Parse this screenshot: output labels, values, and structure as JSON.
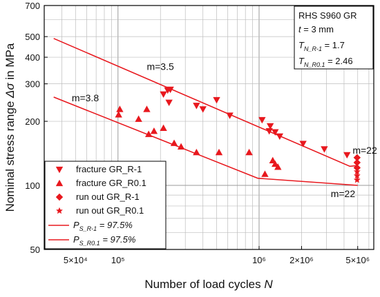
{
  "chart_data": {
    "type": "scatter",
    "xscale": "log",
    "yscale": "log",
    "xlim": [
      30000,
      6500000
    ],
    "ylim": [
      50,
      700
    ],
    "grid": true,
    "xlabel_text": "Number of load cycles ",
    "xlabel_var": "N",
    "ylabel_text": "Nominal stress range ",
    "ylabel_var": "Δσ",
    "ylabel_suffix": " in MPa",
    "x_ticks": [
      {
        "value": 50000,
        "label": "5×10⁴"
      },
      {
        "value": 100000,
        "label": "10⁵"
      },
      {
        "value": 1000000,
        "label": "10⁶"
      },
      {
        "value": 2000000,
        "label": "2×10⁶"
      },
      {
        "value": 5000000,
        "label": "5×10⁶"
      }
    ],
    "y_ticks": [
      {
        "value": 50,
        "label": "50"
      },
      {
        "value": 100,
        "label": "100"
      },
      {
        "value": 200,
        "label": "200"
      },
      {
        "value": 300,
        "label": "300"
      },
      {
        "value": 400,
        "label": "400"
      },
      {
        "value": 500,
        "label": "500"
      },
      {
        "value": 700,
        "label": "700"
      }
    ],
    "color": "#e8181e",
    "series": [
      {
        "name": "fracture GR_R-1",
        "marker": "triangle-down",
        "points": [
          [
            210000,
            268
          ],
          [
            225000,
            280
          ],
          [
            235000,
            282
          ],
          [
            230000,
            245
          ],
          [
            360000,
            237
          ],
          [
            400000,
            228
          ],
          [
            500000,
            252
          ],
          [
            620000,
            213
          ],
          [
            1050000,
            203
          ],
          [
            1180000,
            180
          ],
          [
            1200000,
            190
          ],
          [
            1300000,
            178
          ],
          [
            1400000,
            170
          ],
          [
            2050000,
            157
          ],
          [
            2900000,
            148
          ],
          [
            4200000,
            139
          ]
        ]
      },
      {
        "name": "fracture GR_R0.1",
        "marker": "triangle-up",
        "points": [
          [
            101000,
            215
          ],
          [
            103000,
            228
          ],
          [
            140000,
            205
          ],
          [
            160000,
            228
          ],
          [
            165000,
            174
          ],
          [
            180000,
            180
          ],
          [
            210000,
            186
          ],
          [
            250000,
            158
          ],
          [
            280000,
            152
          ],
          [
            360000,
            143
          ],
          [
            520000,
            143
          ],
          [
            850000,
            143
          ],
          [
            1100000,
            113
          ],
          [
            1250000,
            131
          ],
          [
            1300000,
            126
          ],
          [
            1360000,
            122
          ]
        ]
      },
      {
        "name": "run out GR_R-1",
        "marker": "diamond",
        "points": [
          [
            4950000,
            135
          ],
          [
            4950000,
            128
          ],
          [
            4950000,
            121
          ]
        ]
      },
      {
        "name": "run out GR_R0.1",
        "marker": "star",
        "points": [
          [
            4950000,
            116
          ],
          [
            4950000,
            111
          ],
          [
            4950000,
            106
          ]
        ]
      }
    ],
    "lines": [
      {
        "name": "P_S_R-1 = 97.5%",
        "label_base": "P",
        "label_sub": "S_R-1",
        "label_rest": " = 97.5%",
        "points": [
          [
            35000,
            490
          ],
          [
            4400000,
            123
          ],
          [
            5000000,
            124
          ]
        ]
      },
      {
        "name": "P_S_R0.1 = 97.5%",
        "label_base": "P",
        "label_sub": "S_R0.1",
        "label_rest": " = 97.5%",
        "points": [
          [
            35000,
            260
          ],
          [
            980000,
            108
          ],
          [
            5000000,
            100
          ]
        ]
      }
    ],
    "annotations": [
      {
        "text": "m=3.5",
        "x": 160000,
        "y": 348
      },
      {
        "text": "m=3.8",
        "x": 47000,
        "y": 248
      },
      {
        "text": "m=22",
        "x": 4600000,
        "y": 141
      },
      {
        "text": "m=22",
        "x": 3220000,
        "y": 88
      }
    ],
    "infobox": {
      "line1": "RHS S960 GR",
      "line2_var": "t",
      "line2_rest": " = 3 mm",
      "line3_base": "T",
      "line3_sub": "N_R-1",
      "line3_rest": " = 1.7",
      "line4_base": "T",
      "line4_sub": "N_R0.1",
      "line4_rest": " = 2.46"
    },
    "legend_position": "bottom-left"
  }
}
